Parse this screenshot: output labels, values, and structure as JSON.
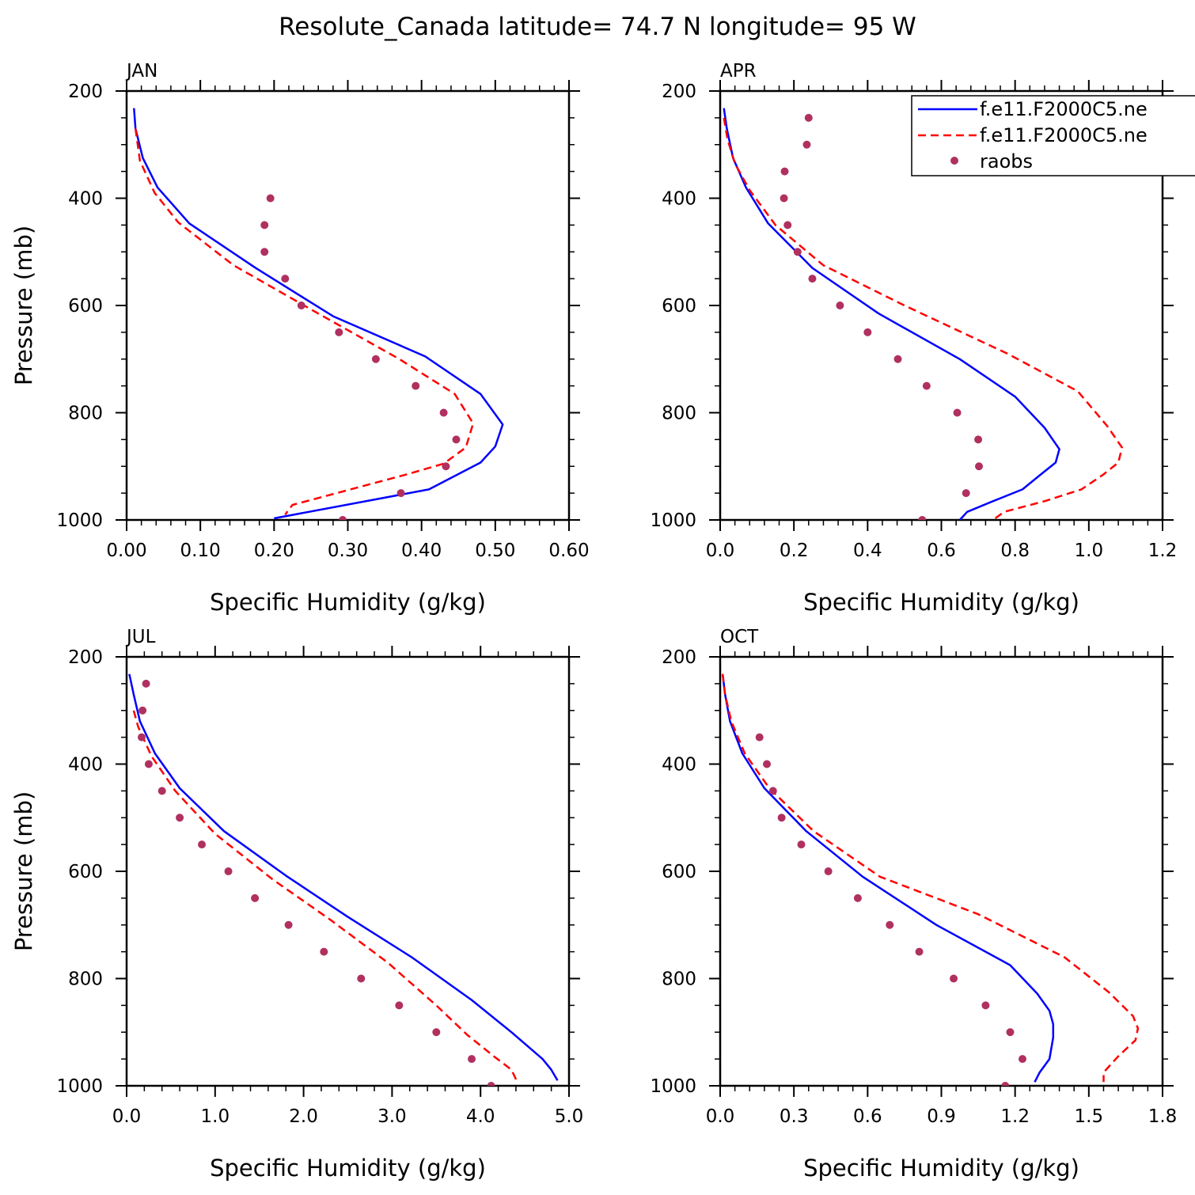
{
  "figure": {
    "title": "Resolute_Canada  latitude= 74.7 N longitude= 95 W"
  },
  "legend": {
    "entries": [
      {
        "label": "f.e11.F2000C5.ne",
        "color": "#0000ff",
        "style": "solid"
      },
      {
        "label": "f.e11.F2000C5.ne",
        "color": "#ff0000",
        "style": "dashed"
      },
      {
        "label": "raobs",
        "color": "#b03060",
        "style": "marker"
      }
    ]
  },
  "chart_data": [
    {
      "type": "line",
      "title": "JAN",
      "xlabel": "Specific Humidity (g/kg)",
      "ylabel": "Pressure (mb)",
      "xlim": [
        0,
        0.6
      ],
      "ylim": [
        1000,
        200
      ],
      "xticks": [
        "0.00",
        "0.10",
        "0.20",
        "0.30",
        "0.40",
        "0.50",
        "0.60"
      ],
      "yticks": [
        "200",
        "400",
        "600",
        "800",
        "1000"
      ],
      "series": [
        {
          "name": "f.e11.F2000C5.ne",
          "color": "#0000ff",
          "style": "solid",
          "x": [
            0.01,
            0.012,
            0.022,
            0.042,
            0.085,
            0.175,
            0.28,
            0.405,
            0.48,
            0.51,
            0.5,
            0.48,
            0.41,
            0.2
          ],
          "y": [
            232,
            270,
            325,
            380,
            447,
            530,
            620,
            695,
            765,
            822,
            863,
            893,
            943,
            997
          ]
        },
        {
          "name": "f.e11.F2000C5.ne",
          "color": "#ff0000",
          "style": "dashed",
          "x": [
            0.012,
            0.018,
            0.038,
            0.07,
            0.145,
            0.26,
            0.37,
            0.445,
            0.47,
            0.46,
            0.43,
            0.38,
            0.225,
            0.215
          ],
          "y": [
            270,
            330,
            390,
            445,
            525,
            615,
            700,
            765,
            820,
            865,
            895,
            915,
            972,
            990
          ]
        },
        {
          "name": "raobs",
          "color": "#b03060",
          "style": "marker",
          "x": [
            0.195,
            0.187,
            0.187,
            0.215,
            0.237,
            0.288,
            0.338,
            0.392,
            0.43,
            0.447,
            0.433,
            0.372,
            0.293
          ],
          "y": [
            400,
            450,
            500,
            550,
            600,
            650,
            700,
            750,
            800,
            850,
            900,
            950,
            1000
          ]
        }
      ]
    },
    {
      "type": "line",
      "title": "APR",
      "xlabel": "Specific Humidity (g/kg)",
      "ylabel": "",
      "xlim": [
        0,
        1.2
      ],
      "ylim": [
        1000,
        200
      ],
      "xticks": [
        "0.0",
        "0.2",
        "0.4",
        "0.6",
        "0.8",
        "1.0",
        "1.2"
      ],
      "yticks": [
        "200",
        "400",
        "600",
        "800",
        "1000"
      ],
      "series": [
        {
          "name": "f.e11.F2000C5.ne",
          "color": "#0000ff",
          "style": "solid",
          "x": [
            0.01,
            0.018,
            0.035,
            0.07,
            0.13,
            0.25,
            0.43,
            0.65,
            0.8,
            0.88,
            0.92,
            0.91,
            0.87,
            0.82,
            0.74,
            0.67,
            0.65
          ],
          "y": [
            232,
            270,
            325,
            380,
            447,
            530,
            615,
            700,
            770,
            828,
            868,
            893,
            915,
            943,
            965,
            985,
            1000
          ]
        },
        {
          "name": "f.e11.F2000C5.ne",
          "color": "#ff0000",
          "style": "dashed",
          "x": [
            0.01,
            0.02,
            0.04,
            0.08,
            0.15,
            0.28,
            0.5,
            0.78,
            0.97,
            1.05,
            1.09,
            1.08,
            1.04,
            0.98,
            0.88,
            0.77,
            0.74
          ],
          "y": [
            250,
            290,
            335,
            385,
            450,
            525,
            600,
            690,
            760,
            825,
            865,
            893,
            915,
            943,
            965,
            985,
            1000
          ]
        },
        {
          "name": "raobs",
          "color": "#b03060",
          "style": "marker",
          "x": [
            0.24,
            0.235,
            0.175,
            0.173,
            0.183,
            0.21,
            0.25,
            0.325,
            0.4,
            0.482,
            0.56,
            0.643,
            0.7,
            0.702,
            0.667,
            0.548
          ],
          "y": [
            250,
            300,
            350,
            400,
            450,
            500,
            550,
            600,
            650,
            700,
            750,
            800,
            850,
            900,
            950,
            1000
          ]
        }
      ]
    },
    {
      "type": "line",
      "title": "JUL",
      "xlabel": "Specific Humidity (g/kg)",
      "ylabel": "Pressure (mb)",
      "xlim": [
        0,
        5.0
      ],
      "ylim": [
        1000,
        200
      ],
      "xticks": [
        "0.0",
        "1.0",
        "2.0",
        "3.0",
        "4.0",
        "5.0"
      ],
      "yticks": [
        "200",
        "400",
        "600",
        "800",
        "1000"
      ],
      "series": [
        {
          "name": "f.e11.F2000C5.ne",
          "color": "#0000ff",
          "style": "solid",
          "x": [
            0.03,
            0.08,
            0.15,
            0.32,
            0.6,
            1.1,
            1.8,
            2.5,
            3.22,
            3.9,
            4.35,
            4.7,
            4.8,
            4.87
          ],
          "y": [
            232,
            270,
            320,
            380,
            445,
            525,
            608,
            685,
            760,
            840,
            900,
            950,
            970,
            990
          ]
        },
        {
          "name": "f.e11.F2000C5.ne",
          "color": "#ff0000",
          "style": "dashed",
          "x": [
            0.08,
            0.13,
            0.28,
            0.55,
            1.0,
            1.65,
            2.3,
            2.95,
            3.5,
            3.85,
            4.15,
            4.35,
            4.42
          ],
          "y": [
            300,
            330,
            385,
            450,
            530,
            615,
            690,
            770,
            850,
            905,
            945,
            970,
            995
          ]
        },
        {
          "name": "raobs",
          "color": "#b03060",
          "style": "marker",
          "x": [
            0.22,
            0.18,
            0.17,
            0.25,
            0.4,
            0.6,
            0.85,
            1.15,
            1.45,
            1.83,
            2.23,
            2.65,
            3.08,
            3.5,
            3.9,
            4.12
          ],
          "y": [
            250,
            300,
            350,
            400,
            450,
            500,
            550,
            600,
            650,
            700,
            750,
            800,
            850,
            900,
            950,
            1000
          ]
        }
      ]
    },
    {
      "type": "line",
      "title": "OCT",
      "xlabel": "Specific Humidity (g/kg)",
      "ylabel": "",
      "xlim": [
        0,
        1.8
      ],
      "ylim": [
        1000,
        200
      ],
      "xticks": [
        "0.0",
        "0.3",
        "0.6",
        "0.9",
        "1.2",
        "1.5",
        "1.8"
      ],
      "yticks": [
        "200",
        "400",
        "600",
        "800",
        "1000"
      ],
      "series": [
        {
          "name": "f.e11.F2000C5.ne",
          "color": "#0000ff",
          "style": "solid",
          "x": [
            0.01,
            0.02,
            0.04,
            0.09,
            0.18,
            0.35,
            0.58,
            0.88,
            1.18,
            1.29,
            1.34,
            1.355,
            1.355,
            1.34,
            1.3,
            1.28
          ],
          "y": [
            232,
            270,
            320,
            380,
            445,
            525,
            610,
            700,
            775,
            828,
            860,
            885,
            910,
            950,
            975,
            993
          ]
        },
        {
          "name": "f.e11.F2000C5.ne",
          "color": "#ff0000",
          "style": "dashed",
          "x": [
            0.01,
            0.02,
            0.045,
            0.1,
            0.2,
            0.38,
            0.65,
            1.05,
            1.4,
            1.58,
            1.68,
            1.7,
            1.69,
            1.62,
            1.56,
            1.56
          ],
          "y": [
            232,
            270,
            320,
            380,
            445,
            525,
            610,
            680,
            760,
            825,
            870,
            893,
            915,
            945,
            975,
            993
          ]
        },
        {
          "name": "raobs",
          "color": "#b03060",
          "style": "marker",
          "x": [
            0.16,
            0.19,
            0.215,
            0.25,
            0.33,
            0.44,
            0.56,
            0.69,
            0.81,
            0.95,
            1.08,
            1.18,
            1.23,
            1.16
          ],
          "y": [
            350,
            400,
            450,
            500,
            550,
            600,
            650,
            700,
            750,
            800,
            850,
            900,
            950,
            1000
          ]
        }
      ]
    }
  ]
}
